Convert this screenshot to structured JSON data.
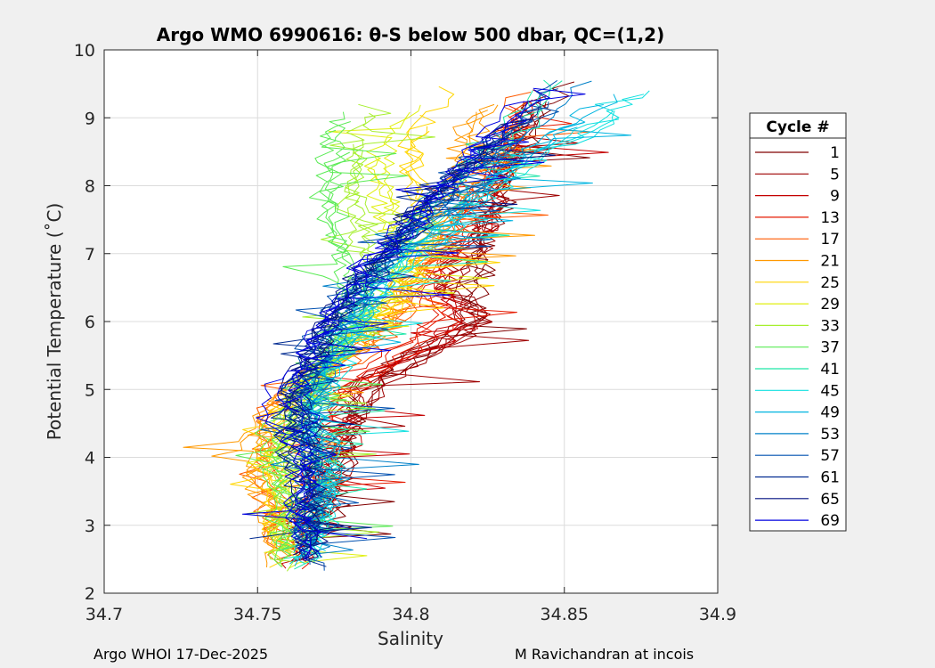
{
  "chart_data": {
    "type": "line",
    "title": "Argo WMO 6990616: θ-S below 500 dbar,  QC=(1,2)",
    "xlabel": "Salinity",
    "ylabel": "Potential Temperature (˚C)",
    "xlim": [
      34.7,
      34.9
    ],
    "ylim": [
      2,
      10
    ],
    "xticks": [
      34.7,
      34.75,
      34.8,
      34.85,
      34.9
    ],
    "xtick_labels": [
      "34.7",
      "34.75",
      "34.8",
      "34.85",
      "34.9"
    ],
    "yticks": [
      2,
      3,
      4,
      5,
      6,
      7,
      8,
      9,
      10
    ],
    "ytick_labels": [
      "2",
      "3",
      "4",
      "5",
      "6",
      "7",
      "8",
      "9",
      "10"
    ],
    "grid": true,
    "legend": {
      "title": "Cycle #",
      "placement": "outside-right",
      "entries": [
        {
          "label": "1",
          "color": "#800000"
        },
        {
          "label": "5",
          "color": "#9e0000"
        },
        {
          "label": "9",
          "color": "#c40000"
        },
        {
          "label": "13",
          "color": "#e61a00"
        },
        {
          "label": "17",
          "color": "#ff5a00"
        },
        {
          "label": "21",
          "color": "#ff9900"
        },
        {
          "label": "25",
          "color": "#ffd500"
        },
        {
          "label": "29",
          "color": "#e0ef10"
        },
        {
          "label": "33",
          "color": "#a6ef2e"
        },
        {
          "label": "37",
          "color": "#5aeb55"
        },
        {
          "label": "41",
          "color": "#1ee6a8"
        },
        {
          "label": "45",
          "color": "#10e0e0"
        },
        {
          "label": "49",
          "color": "#00b4e0"
        },
        {
          "label": "53",
          "color": "#0080c8"
        },
        {
          "label": "57",
          "color": "#0050b0"
        },
        {
          "label": "61",
          "color": "#002a90"
        },
        {
          "label": "65",
          "color": "#001080"
        },
        {
          "label": "69",
          "color": "#0000e0"
        }
      ]
    },
    "series_envelope": {
      "note": "approximate mean theta-S path per cycle group; individual profiles are noisy around it",
      "theta": [
        2.4,
        3.0,
        3.5,
        4.0,
        4.5,
        5.0,
        5.5,
        6.0,
        6.5,
        7.0,
        7.5,
        8.0,
        8.5,
        9.0,
        9.5
      ],
      "salinity_by_group": [
        {
          "group": "1",
          "salinity": [
            34.762,
            34.77,
            34.775,
            34.78,
            34.782,
            34.785,
            34.8,
            34.818,
            34.818,
            34.822,
            34.826,
            34.83,
            34.835,
            34.84,
            34.846
          ]
        },
        {
          "group": "5",
          "salinity": [
            34.762,
            34.768,
            34.772,
            34.777,
            34.78,
            34.785,
            34.804,
            34.822,
            34.812,
            34.82,
            34.825,
            34.829,
            34.834,
            34.84,
            34.846
          ]
        },
        {
          "group": "9",
          "salinity": [
            34.76,
            34.766,
            34.77,
            34.774,
            34.778,
            34.782,
            34.8,
            34.818,
            34.808,
            34.816,
            34.822,
            34.826,
            34.832,
            34.838,
            34.844
          ]
        },
        {
          "group": "13",
          "salinity": [
            34.759,
            34.763,
            34.766,
            34.77,
            34.773,
            34.778,
            34.794,
            34.81,
            34.805,
            34.813,
            34.819,
            34.825,
            34.83,
            34.836,
            34.842
          ]
        },
        {
          "group": "17",
          "salinity": [
            34.756,
            34.756,
            34.754,
            34.752,
            34.754,
            34.762,
            34.782,
            34.797,
            34.8,
            34.808,
            34.815,
            34.822,
            34.828,
            34.834,
            34.84
          ]
        },
        {
          "group": "21",
          "salinity": [
            34.756,
            34.755,
            34.752,
            34.749,
            34.752,
            34.76,
            34.778,
            34.792,
            34.798,
            34.805,
            34.81,
            34.815,
            34.818,
            34.822,
            34.83
          ]
        },
        {
          "group": "25",
          "salinity": [
            34.757,
            34.757,
            34.755,
            34.752,
            34.755,
            34.762,
            34.776,
            34.79,
            34.797,
            34.803,
            34.806,
            34.8,
            34.8,
            34.805,
            34.812
          ]
        },
        {
          "group": "29",
          "salinity": [
            34.757,
            34.758,
            34.757,
            34.755,
            34.758,
            34.763,
            34.775,
            34.787,
            34.793,
            34.798,
            34.795,
            34.79,
            34.792,
            34.798,
            34.806
          ]
        },
        {
          "group": "33",
          "salinity": [
            34.758,
            34.76,
            34.758,
            34.756,
            34.76,
            34.766,
            34.774,
            34.784,
            34.787,
            34.785,
            34.781,
            34.779,
            34.781,
            34.785,
            34.79
          ]
        },
        {
          "group": "37",
          "salinity": [
            34.759,
            34.76,
            34.758,
            34.757,
            34.76,
            34.766,
            34.773,
            34.78,
            34.78,
            34.777,
            34.772,
            34.772,
            34.775,
            34.778,
            34.782
          ]
        },
        {
          "group": "41",
          "salinity": [
            34.762,
            34.768,
            34.773,
            34.77,
            34.768,
            34.768,
            34.774,
            34.78,
            34.785,
            34.795,
            34.805,
            34.815,
            34.825,
            34.835,
            34.845
          ]
        },
        {
          "group": "45",
          "salinity": [
            34.763,
            34.77,
            34.774,
            34.772,
            34.77,
            34.772,
            34.778,
            34.784,
            34.79,
            34.802,
            34.815,
            34.828,
            34.845,
            34.865,
            34.882
          ]
        },
        {
          "group": "49",
          "salinity": [
            34.764,
            34.769,
            34.772,
            34.77,
            34.768,
            34.77,
            34.776,
            34.782,
            34.788,
            34.798,
            34.81,
            34.822,
            34.838,
            34.855,
            34.872
          ]
        },
        {
          "group": "53",
          "salinity": [
            34.765,
            34.767,
            34.77,
            34.768,
            34.765,
            34.767,
            34.772,
            34.779,
            34.786,
            34.795,
            34.806,
            34.818,
            34.83,
            34.845,
            34.86
          ]
        },
        {
          "group": "57",
          "salinity": [
            34.765,
            34.766,
            34.768,
            34.766,
            34.763,
            34.764,
            34.77,
            34.777,
            34.784,
            34.793,
            34.803,
            34.815,
            34.826,
            34.838,
            34.85
          ]
        },
        {
          "group": "61",
          "salinity": [
            34.766,
            34.766,
            34.767,
            34.765,
            34.762,
            34.762,
            34.768,
            34.775,
            34.783,
            34.792,
            34.802,
            34.813,
            34.824,
            34.836,
            34.848
          ]
        },
        {
          "group": "65",
          "salinity": [
            34.766,
            34.766,
            34.766,
            34.764,
            34.761,
            34.761,
            34.767,
            34.774,
            34.782,
            34.791,
            34.801,
            34.812,
            34.823,
            34.835,
            34.846
          ]
        },
        {
          "group": "69",
          "salinity": [
            34.766,
            34.765,
            34.766,
            34.764,
            34.76,
            34.76,
            34.766,
            34.773,
            34.781,
            34.79,
            34.8,
            34.811,
            34.822,
            34.833,
            34.844
          ]
        }
      ]
    }
  },
  "footer": {
    "left": "Argo WHOI 17-Dec-2025",
    "right": "M Ravichandran at incois"
  }
}
